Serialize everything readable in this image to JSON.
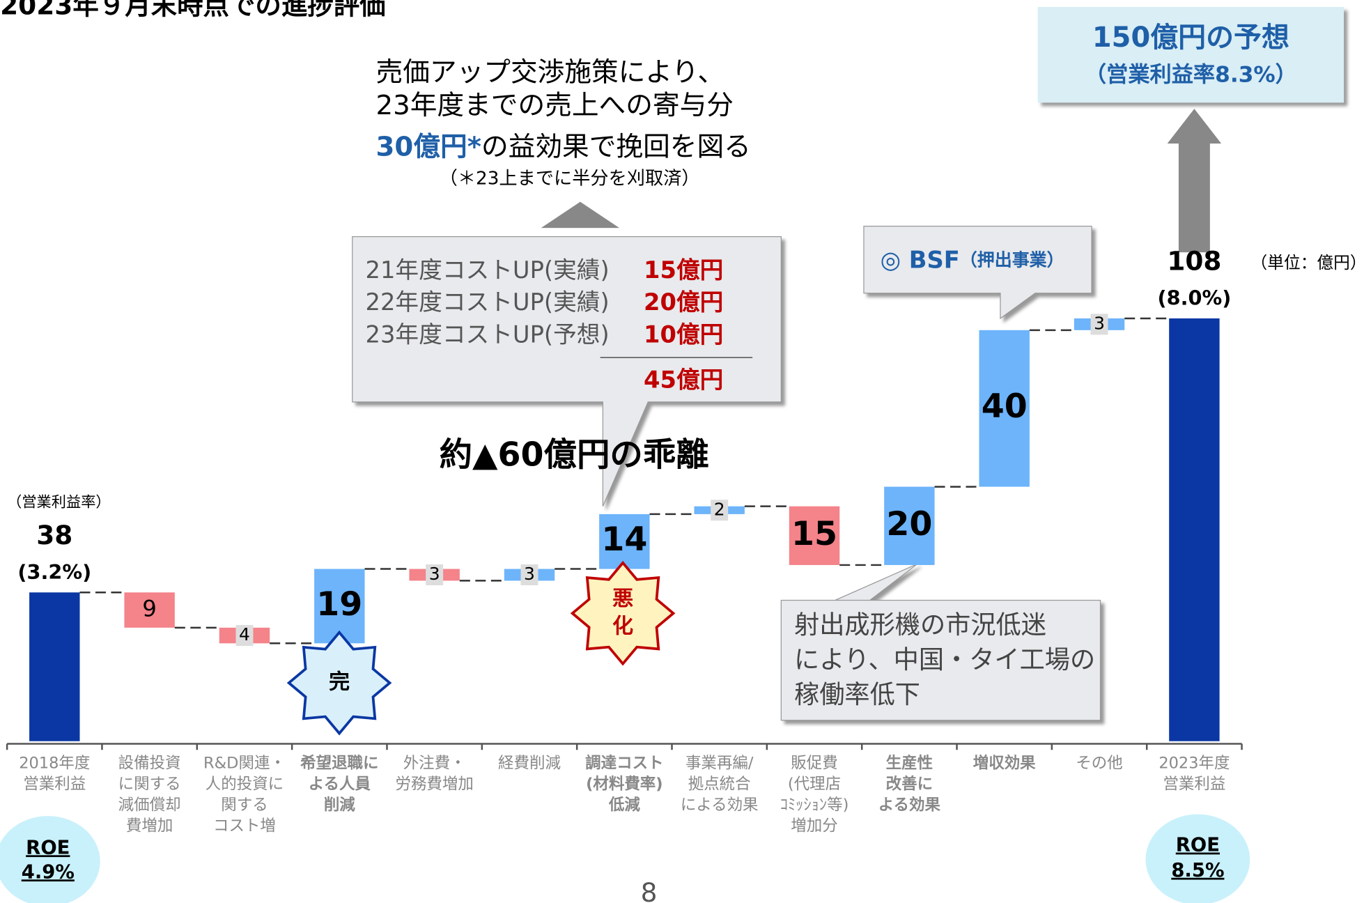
{
  "chart_data": {
    "type": "waterfall",
    "title": "2023年９月末時点での進捗評価",
    "unit_label": "（単位：億円）",
    "margin_axis_label": "（営業利益率）",
    "categories": [
      [
        "2018年度",
        "営業利益"
      ],
      [
        "設備投資",
        "に関する",
        "減価償却",
        "費増加"
      ],
      [
        "R&D関連・",
        "人的投資に",
        "関する",
        "コスト増"
      ],
      [
        "希望退職に",
        "よる人員",
        "削減"
      ],
      [
        "外注費・",
        "労務費増加"
      ],
      [
        "経費削減"
      ],
      [
        "調達コスト",
        "(材料費率)",
        "低減"
      ],
      [
        "事業再編/",
        "拠点統合",
        "による効果"
      ],
      [
        "販促費",
        "(代理店",
        "ｺﾐｯｼｮﾝ等)",
        "増加分"
      ],
      [
        "生産性",
        "改善に",
        "よる効果"
      ],
      [
        "増収効果"
      ],
      [
        "その他"
      ],
      [
        "2023年度",
        "営業利益"
      ]
    ],
    "values": [
      38,
      -9,
      -4,
      19,
      -3,
      3,
      14,
      2,
      -15,
      20,
      40,
      3,
      108
    ],
    "value_labels": [
      "38",
      "9",
      "4",
      "19",
      "3",
      "3",
      "14",
      "2",
      "15",
      "20",
      "40",
      "3",
      "108"
    ],
    "start_margin": "(3.2%)",
    "end_margin": "(8.0%)",
    "total_color": "#0a37a3",
    "increase_color": "#6db4fb",
    "decrease_color": "#f4838a",
    "annotations": {
      "price_lines": [
        "売価アップ交渉施策により、",
        "23年度までの売上への寄与分"
      ],
      "price_amount": "30億円*",
      "price_tail": "の益効果で挽回を図る",
      "price_note": "（＊23上までに半分を刈取済）",
      "cost_rows": [
        {
          "label": "21年度コストUP(実績)",
          "value": "15億円"
        },
        {
          "label": "22年度コストUP(実績)",
          "value": "20億円"
        },
        {
          "label": "23年度コストUP(予想)",
          "value": "10億円"
        }
      ],
      "cost_total": "45億円",
      "gap": "約▲60億円の乖離",
      "bsf": "◎ BSF",
      "bsf_note": "（押出事業）",
      "forecast": "150億円の予想",
      "forecast_note": "（営業利益率8.3%）",
      "market_lines": [
        "射出成形機の市況低迷",
        "により、中国・タイ工場の",
        "稼働率低下"
      ],
      "badge_done": "完",
      "badge_worse": [
        "悪",
        "化"
      ],
      "roe_start": [
        "ROE",
        "4.9%"
      ],
      "roe_end": [
        "ROE",
        "8.5%"
      ],
      "page": "8"
    }
  }
}
